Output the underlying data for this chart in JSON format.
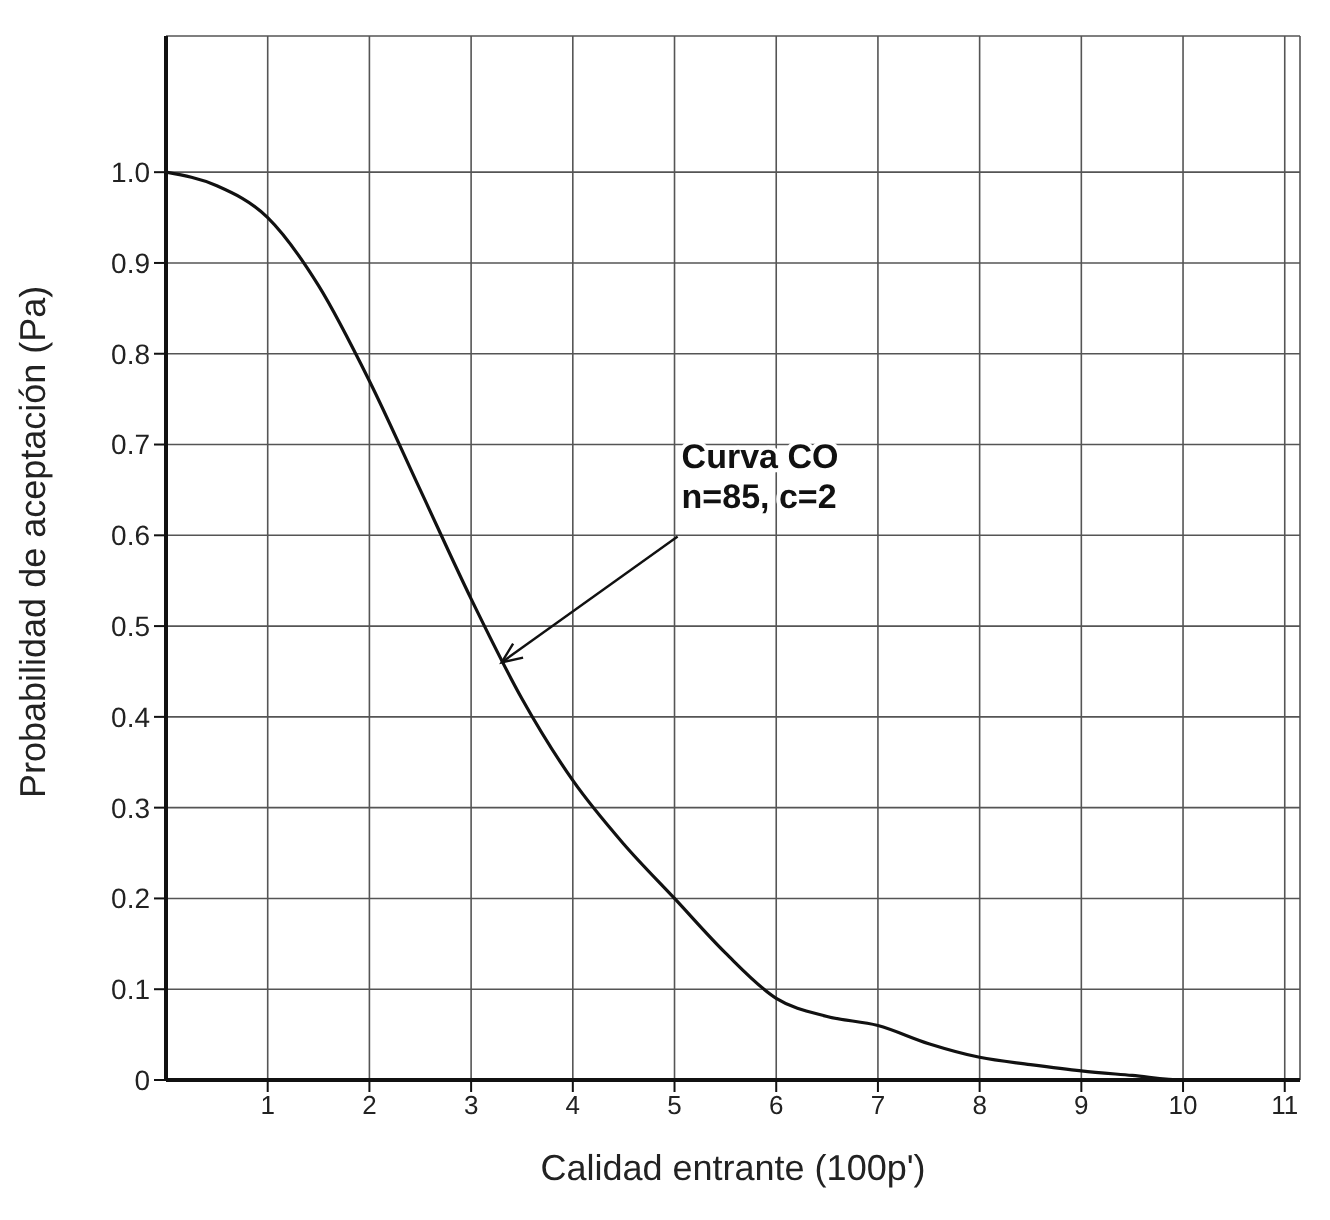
{
  "chart_data": {
    "type": "line",
    "xlabel": "Calidad entrante (100p')",
    "ylabel": "Probabilidad de aceptación (Pa)",
    "x": [
      0,
      0.5,
      1,
      1.5,
      2,
      2.5,
      3,
      3.5,
      4,
      4.5,
      5,
      5.5,
      6,
      6.5,
      7,
      7.5,
      8,
      8.5,
      9,
      9.5,
      10,
      10.5
    ],
    "series": [
      {
        "color": "#111111",
        "values": [
          1.0,
          0.985,
          0.95,
          0.875,
          0.77,
          0.65,
          0.53,
          0.42,
          0.33,
          0.26,
          0.2,
          0.14,
          0.09,
          0.07,
          0.06,
          0.04,
          0.025,
          0.017,
          0.01,
          0.005,
          0.0,
          0.0
        ]
      }
    ],
    "xlim": [
      0,
      11.15
    ],
    "xticks": [
      1,
      2,
      3,
      4,
      5,
      6,
      7,
      8,
      9,
      10,
      11
    ],
    "ylim": [
      0,
      1.15
    ],
    "yticks": [
      0,
      {
        "value": 0.1,
        "label": "0.1"
      },
      {
        "value": 0.2,
        "label": "0.2"
      },
      {
        "value": 0.3,
        "label": "0.3"
      },
      {
        "value": 0.4,
        "label": "0.4"
      },
      {
        "value": 0.5,
        "label": "0.5"
      },
      {
        "value": 0.6,
        "label": "0.6"
      },
      {
        "value": 0.7,
        "label": "0.7"
      },
      {
        "value": 0.8,
        "label": "0.8"
      },
      {
        "value": 0.9,
        "label": "0.9"
      },
      {
        "value": 1,
        "label": "1.0"
      }
    ],
    "annotations": [
      {
        "text": "Curva CO\nn=85, c=2",
        "x": 3.3,
        "y": 0.46
      }
    ],
    "grid": true,
    "marker": "none",
    "line_style": "solid",
    "legend": false
  }
}
